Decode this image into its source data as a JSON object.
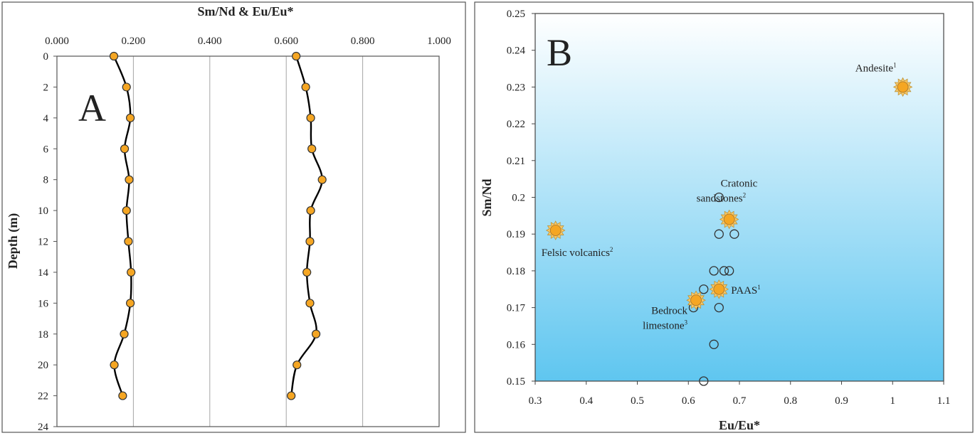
{
  "chart_data": [
    {
      "type": "line",
      "panel_label": "A",
      "title": "Sm/Nd & Eu/Eu*",
      "xlabel": "",
      "ylabel": "Depth (m)",
      "xlim": [
        0,
        1
      ],
      "ylim": [
        0,
        24
      ],
      "y_inverted": true,
      "x_ticks": [
        "0.000",
        "0.200",
        "0.400",
        "0.600",
        "0.800",
        "1.000"
      ],
      "y_ticks": [
        "0",
        "2",
        "4",
        "6",
        "8",
        "10",
        "12",
        "14",
        "16",
        "18",
        "20",
        "22",
        "24"
      ],
      "grid": "vertical",
      "legend": "none",
      "series": [
        {
          "values": [
            {
              "x": 0.149,
              "y": 0
            },
            {
              "x": 0.182,
              "y": 2
            },
            {
              "x": 0.192,
              "y": 4
            },
            {
              "x": 0.177,
              "y": 6
            },
            {
              "x": 0.189,
              "y": 8
            },
            {
              "x": 0.182,
              "y": 10
            },
            {
              "x": 0.187,
              "y": 12
            },
            {
              "x": 0.194,
              "y": 14
            },
            {
              "x": 0.192,
              "y": 16
            },
            {
              "x": 0.176,
              "y": 18
            },
            {
              "x": 0.15,
              "y": 20
            },
            {
              "x": 0.172,
              "y": 22
            }
          ]
        },
        {
          "values": [
            {
              "x": 0.626,
              "y": 0
            },
            {
              "x": 0.651,
              "y": 2
            },
            {
              "x": 0.664,
              "y": 4
            },
            {
              "x": 0.667,
              "y": 6
            },
            {
              "x": 0.694,
              "y": 8
            },
            {
              "x": 0.664,
              "y": 10
            },
            {
              "x": 0.662,
              "y": 12
            },
            {
              "x": 0.654,
              "y": 14
            },
            {
              "x": 0.662,
              "y": 16
            },
            {
              "x": 0.678,
              "y": 18
            },
            {
              "x": 0.628,
              "y": 20
            },
            {
              "x": 0.613,
              "y": 22
            }
          ]
        }
      ],
      "colors": {
        "marker_fill": "#F5A623",
        "marker_stroke": "#333333",
        "line": "#000000",
        "grid": "#a6a6a6"
      }
    },
    {
      "type": "scatter",
      "panel_label": "B",
      "xlabel": "Eu/Eu*",
      "ylabel": "Sm/Nd",
      "xlim": [
        0.3,
        1.1
      ],
      "ylim": [
        0.15,
        0.25
      ],
      "x_ticks": [
        "0.3",
        "0.4",
        "0.5",
        "0.6",
        "0.7",
        "0.8",
        "0.9",
        "1",
        "1.1"
      ],
      "y_ticks": [
        "0.15",
        "0.16",
        "0.17",
        "0.18",
        "0.19",
        "0.2",
        "0.21",
        "0.22",
        "0.23",
        "0.24",
        "0.25"
      ],
      "grid": false,
      "legend": "none",
      "series": [
        {
          "values": [
            {
              "x": 0.66,
              "y": 0.2
            },
            {
              "x": 0.66,
              "y": 0.19
            },
            {
              "x": 0.69,
              "y": 0.19
            },
            {
              "x": 0.65,
              "y": 0.18
            },
            {
              "x": 0.67,
              "y": 0.18
            },
            {
              "x": 0.68,
              "y": 0.18
            },
            {
              "x": 0.63,
              "y": 0.175
            },
            {
              "x": 0.66,
              "y": 0.17
            },
            {
              "x": 0.61,
              "y": 0.17
            },
            {
              "x": 0.65,
              "y": 0.16
            },
            {
              "x": 0.63,
              "y": 0.15
            }
          ]
        },
        {
          "values": [
            {
              "x": 1.02,
              "y": 0.23,
              "label": "Andesite",
              "sup": "1"
            },
            {
              "x": 0.68,
              "y": 0.194,
              "label_lines": [
                "Cratonic",
                "sandstones"
              ],
              "sup": "2"
            },
            {
              "x": 0.34,
              "y": 0.191,
              "label": "Felsic volcanics",
              "sup": "2"
            },
            {
              "x": 0.66,
              "y": 0.175,
              "label": "PAAS",
              "sup": "1"
            },
            {
              "x": 0.615,
              "y": 0.172,
              "label_lines": [
                "Bedrock",
                "limestone"
              ],
              "sup": "3"
            }
          ]
        }
      ],
      "colors": {
        "background_top": "#ffffff",
        "background_bottom": "#5fc6f0",
        "reference_fill": "#F5A623",
        "circle_stroke": "#333333"
      }
    }
  ]
}
